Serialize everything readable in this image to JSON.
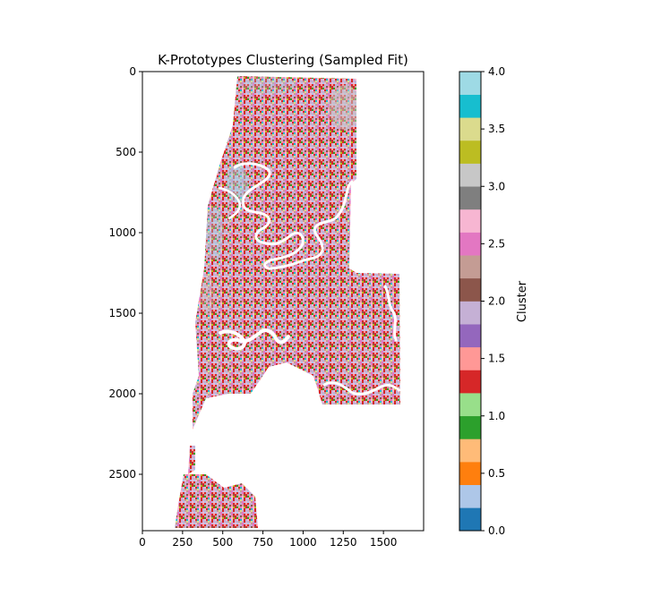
{
  "chart_data": {
    "type": "heatmap",
    "title": "K-Prototypes Clustering (Sampled Fit)",
    "xlabel": "",
    "ylabel": "",
    "xlim": [
      0,
      1750
    ],
    "ylim": [
      2850,
      0
    ],
    "x_ticks": [
      {
        "value": 0,
        "label": "0"
      },
      {
        "value": 250,
        "label": "250"
      },
      {
        "value": 500,
        "label": "500"
      },
      {
        "value": 750,
        "label": "750"
      },
      {
        "value": 1000,
        "label": "1000"
      },
      {
        "value": 1250,
        "label": "1250"
      },
      {
        "value": 1500,
        "label": "1500"
      }
    ],
    "y_ticks": [
      {
        "value": 0,
        "label": "0"
      },
      {
        "value": 500,
        "label": "500"
      },
      {
        "value": 1000,
        "label": "1000"
      },
      {
        "value": 1500,
        "label": "1500"
      },
      {
        "value": 2000,
        "label": "2000"
      },
      {
        "value": 2500,
        "label": "2500"
      }
    ],
    "colormap": "tab20",
    "colorbar": {
      "label": "Cluster",
      "range": [
        0,
        4
      ],
      "ticks": [
        {
          "value": 0.0,
          "label": "0.0"
        },
        {
          "value": 0.5,
          "label": "0.5"
        },
        {
          "value": 1.0,
          "label": "1.0"
        },
        {
          "value": 1.5,
          "label": "1.5"
        },
        {
          "value": 2.0,
          "label": "2.0"
        },
        {
          "value": 2.5,
          "label": "2.5"
        },
        {
          "value": 3.0,
          "label": "3.0"
        },
        {
          "value": 3.5,
          "label": "3.5"
        },
        {
          "value": 4.0,
          "label": "4.0"
        }
      ],
      "colors": [
        "#1f77b4",
        "#aec7e8",
        "#ff7f0e",
        "#ffbb78",
        "#2ca02c",
        "#98df8a",
        "#d62728",
        "#ff9896",
        "#9467bd",
        "#c5b0d5",
        "#8c564b",
        "#c49c94",
        "#e377c2",
        "#f7b6d2",
        "#7f7f7f",
        "#c7c7c7",
        "#bcbd22",
        "#dbdb8d",
        "#17becf",
        "#9edae5"
      ]
    },
    "dominant_colors": [
      "#e377c2",
      "#c5b0d5",
      "#f7b6d2",
      "#d62728",
      "#ff9896",
      "#c49c94"
    ],
    "grid": false
  }
}
